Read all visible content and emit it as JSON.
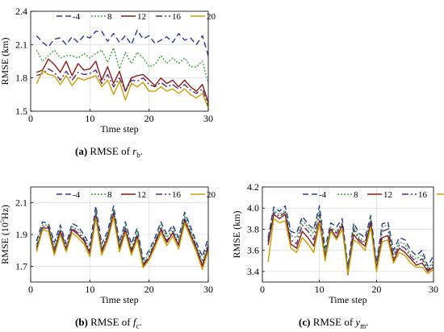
{
  "legend": {
    "entries": [
      "-4",
      "8",
      "12",
      "16",
      "20"
    ],
    "colors": [
      "#2b3990",
      "#3aa635",
      "#8b1a1a",
      "#5a2a6a",
      "#c8a000"
    ],
    "dashes": [
      "7,4",
      "2,2",
      "",
      "8,3,2,3",
      ""
    ]
  },
  "captions": [
    {
      "label": "(a)",
      "text": "RMSE of ",
      "sym": "r",
      "sub": "b",
      "end": "."
    },
    {
      "label": "(b)",
      "text": "RMSE of ",
      "sym": "f",
      "sub": "c",
      "end": "."
    },
    {
      "label": "(c)",
      "text": "RMSE of ",
      "sym": "y",
      "sub": "m",
      "end": "."
    }
  ],
  "chart_data": [
    {
      "type": "line",
      "title": "",
      "xlabel": "Time step",
      "ylabel": "RMSE (km)",
      "xlim": [
        0,
        30
      ],
      "ylim": [
        1.5,
        2.4
      ],
      "xticks": [
        0,
        10,
        20,
        30
      ],
      "yticks": [
        1.5,
        1.8,
        2.1,
        2.4
      ],
      "ytick_labels": [
        "1.5",
        "1.8",
        "2.1",
        "2.4"
      ],
      "grid": true,
      "legend_position": "top",
      "x": [
        1,
        2,
        3,
        4,
        5,
        6,
        7,
        8,
        9,
        10,
        11,
        12,
        13,
        14,
        15,
        16,
        17,
        18,
        19,
        20,
        21,
        22,
        23,
        24,
        25,
        26,
        27,
        28,
        29,
        30
      ],
      "series": [
        {
          "name": "-4",
          "values": [
            2.18,
            2.12,
            2.08,
            2.15,
            2.16,
            2.1,
            2.17,
            2.12,
            2.18,
            2.16,
            2.22,
            2.22,
            2.13,
            2.2,
            2.12,
            2.18,
            2.1,
            2.23,
            2.15,
            2.18,
            2.11,
            2.14,
            2.17,
            2.12,
            2.2,
            2.14,
            2.16,
            2.1,
            2.18,
            2.0
          ]
        },
        {
          "name": "8",
          "values": [
            2.05,
            1.95,
            2.0,
            2.05,
            1.98,
            2.0,
            2.0,
            1.98,
            2.02,
            1.98,
            2.02,
            2.05,
            1.94,
            2.07,
            1.88,
            2.03,
            1.93,
            2.03,
            1.98,
            1.9,
            1.92,
            2.0,
            1.93,
            1.98,
            1.93,
            1.98,
            1.9,
            1.9,
            1.95,
            1.75
          ]
        },
        {
          "name": "12",
          "values": [
            1.85,
            1.87,
            1.97,
            1.92,
            1.85,
            1.95,
            1.82,
            1.93,
            1.87,
            1.88,
            1.95,
            1.78,
            1.9,
            1.75,
            1.86,
            1.68,
            1.8,
            1.82,
            1.83,
            1.78,
            1.73,
            1.8,
            1.75,
            1.78,
            1.72,
            1.78,
            1.72,
            1.68,
            1.74,
            1.58
          ]
        },
        {
          "name": "16",
          "values": [
            1.82,
            1.84,
            1.88,
            1.85,
            1.78,
            1.86,
            1.78,
            1.85,
            1.83,
            1.84,
            1.87,
            1.75,
            1.83,
            1.72,
            1.8,
            1.68,
            1.78,
            1.77,
            1.8,
            1.74,
            1.72,
            1.76,
            1.72,
            1.74,
            1.7,
            1.74,
            1.69,
            1.66,
            1.7,
            1.55
          ]
        },
        {
          "name": "20",
          "values": [
            1.75,
            1.86,
            1.83,
            1.82,
            1.74,
            1.82,
            1.73,
            1.8,
            1.78,
            1.8,
            1.82,
            1.72,
            1.78,
            1.65,
            1.77,
            1.6,
            1.75,
            1.72,
            1.76,
            1.68,
            1.68,
            1.72,
            1.68,
            1.7,
            1.66,
            1.7,
            1.65,
            1.62,
            1.66,
            1.53
          ]
        }
      ]
    },
    {
      "type": "line",
      "title": "",
      "xlabel": "Time step",
      "ylabel": "RMSE (10^5Hz)",
      "xlim": [
        0,
        30
      ],
      "ylim": [
        1.6,
        2.2
      ],
      "xticks": [
        0,
        10,
        20,
        30
      ],
      "yticks": [
        1.7,
        1.9,
        2.1
      ],
      "ytick_labels": [
        "1.7",
        "1.9",
        "2.1"
      ],
      "grid": true,
      "legend_position": "top",
      "x": [
        1,
        2,
        3,
        4,
        5,
        6,
        7,
        8,
        9,
        10,
        11,
        12,
        13,
        14,
        15,
        16,
        17,
        18,
        19,
        20,
        21,
        22,
        23,
        24,
        25,
        26,
        27,
        28,
        29,
        30
      ],
      "series": [
        {
          "name": "-4",
          "values": [
            1.86,
            1.98,
            1.97,
            1.85,
            1.96,
            1.84,
            1.97,
            1.95,
            1.9,
            1.83,
            2.08,
            1.84,
            1.92,
            2.08,
            1.85,
            1.98,
            1.84,
            1.94,
            1.74,
            1.8,
            1.88,
            1.98,
            1.9,
            1.96,
            1.88,
            2.04,
            1.95,
            1.85,
            1.76,
            1.88
          ]
        },
        {
          "name": "8",
          "values": [
            1.84,
            1.96,
            1.96,
            1.82,
            1.94,
            1.82,
            1.95,
            1.93,
            1.88,
            1.8,
            2.05,
            1.81,
            1.9,
            2.06,
            1.83,
            1.96,
            1.81,
            1.92,
            1.72,
            1.78,
            1.86,
            1.96,
            1.88,
            1.94,
            1.86,
            2.02,
            1.93,
            1.83,
            1.73,
            1.85
          ]
        },
        {
          "name": "12",
          "values": [
            1.8,
            1.94,
            1.94,
            1.79,
            1.92,
            1.8,
            1.93,
            1.9,
            1.86,
            1.78,
            2.02,
            1.79,
            1.88,
            2.03,
            1.81,
            1.93,
            1.79,
            1.89,
            1.7,
            1.75,
            1.84,
            1.93,
            1.85,
            1.91,
            1.83,
            1.99,
            1.9,
            1.81,
            1.7,
            1.82
          ]
        },
        {
          "name": "16",
          "values": [
            1.82,
            1.95,
            1.95,
            1.8,
            1.93,
            1.81,
            1.94,
            1.91,
            1.87,
            1.79,
            2.03,
            1.8,
            1.89,
            2.04,
            1.82,
            1.94,
            1.8,
            1.9,
            1.71,
            1.76,
            1.85,
            1.94,
            1.86,
            1.92,
            1.84,
            2.0,
            1.91,
            1.82,
            1.71,
            1.83
          ]
        },
        {
          "name": "20",
          "values": [
            1.79,
            1.93,
            1.92,
            1.77,
            1.9,
            1.79,
            1.91,
            1.88,
            1.84,
            1.76,
            2.0,
            1.77,
            1.86,
            2.01,
            1.79,
            1.91,
            1.77,
            1.87,
            1.69,
            1.74,
            1.82,
            1.91,
            1.83,
            1.89,
            1.81,
            1.97,
            1.88,
            1.79,
            1.68,
            1.8
          ]
        }
      ]
    },
    {
      "type": "line",
      "title": "",
      "xlabel": "Time step",
      "ylabel": "RMSE (km)",
      "xlim": [
        0,
        30
      ],
      "ylim": [
        3.3,
        4.2
      ],
      "xticks": [
        0,
        10,
        20,
        30
      ],
      "yticks": [
        3.4,
        3.6,
        3.8,
        4.0,
        4.2
      ],
      "ytick_labels": [
        "3.4",
        "3.6",
        "3.8",
        "4.0",
        "4.2"
      ],
      "grid": true,
      "legend_position": "top",
      "x": [
        1,
        2,
        3,
        4,
        5,
        6,
        7,
        8,
        9,
        10,
        11,
        12,
        13,
        14,
        15,
        16,
        17,
        18,
        19,
        20,
        21,
        22,
        23,
        24,
        25,
        26,
        27,
        28,
        29,
        30
      ],
      "series": [
        {
          "name": "-4",
          "values": [
            3.72,
            4.01,
            3.97,
            4.02,
            3.78,
            3.76,
            3.92,
            3.85,
            3.8,
            4.02,
            3.62,
            3.86,
            3.82,
            3.9,
            3.44,
            3.86,
            3.76,
            3.72,
            3.93,
            3.48,
            3.85,
            3.87,
            3.6,
            3.72,
            3.7,
            3.6,
            3.55,
            3.6,
            3.45,
            3.55
          ]
        },
        {
          "name": "8",
          "values": [
            3.7,
            3.98,
            3.94,
            3.98,
            3.74,
            3.72,
            3.88,
            3.82,
            3.76,
            3.98,
            3.58,
            3.82,
            3.78,
            3.86,
            3.41,
            3.83,
            3.72,
            3.68,
            3.9,
            3.45,
            3.82,
            3.84,
            3.56,
            3.68,
            3.66,
            3.56,
            3.52,
            3.56,
            3.42,
            3.5
          ]
        },
        {
          "name": "12",
          "values": [
            3.65,
            3.94,
            3.9,
            3.94,
            3.66,
            3.62,
            3.78,
            3.72,
            3.64,
            3.88,
            3.52,
            3.8,
            3.72,
            3.84,
            3.37,
            3.75,
            3.68,
            3.64,
            3.86,
            3.42,
            3.72,
            3.74,
            3.5,
            3.62,
            3.58,
            3.52,
            3.46,
            3.48,
            3.4,
            3.44
          ]
        },
        {
          "name": "16",
          "values": [
            3.68,
            3.96,
            3.92,
            3.96,
            3.7,
            3.66,
            3.84,
            3.78,
            3.7,
            3.94,
            3.55,
            3.81,
            3.76,
            3.85,
            3.39,
            3.8,
            3.7,
            3.66,
            3.88,
            3.44,
            3.78,
            3.8,
            3.53,
            3.65,
            3.62,
            3.54,
            3.49,
            3.52,
            3.41,
            3.47
          ]
        },
        {
          "name": "20",
          "values": [
            3.49,
            3.9,
            3.86,
            3.88,
            3.62,
            3.58,
            3.72,
            3.66,
            3.58,
            3.86,
            3.5,
            3.78,
            3.7,
            3.8,
            3.38,
            3.7,
            3.66,
            3.6,
            3.82,
            3.4,
            3.68,
            3.7,
            3.48,
            3.58,
            3.55,
            3.48,
            3.44,
            3.44,
            3.38,
            3.42
          ]
        }
      ]
    }
  ]
}
